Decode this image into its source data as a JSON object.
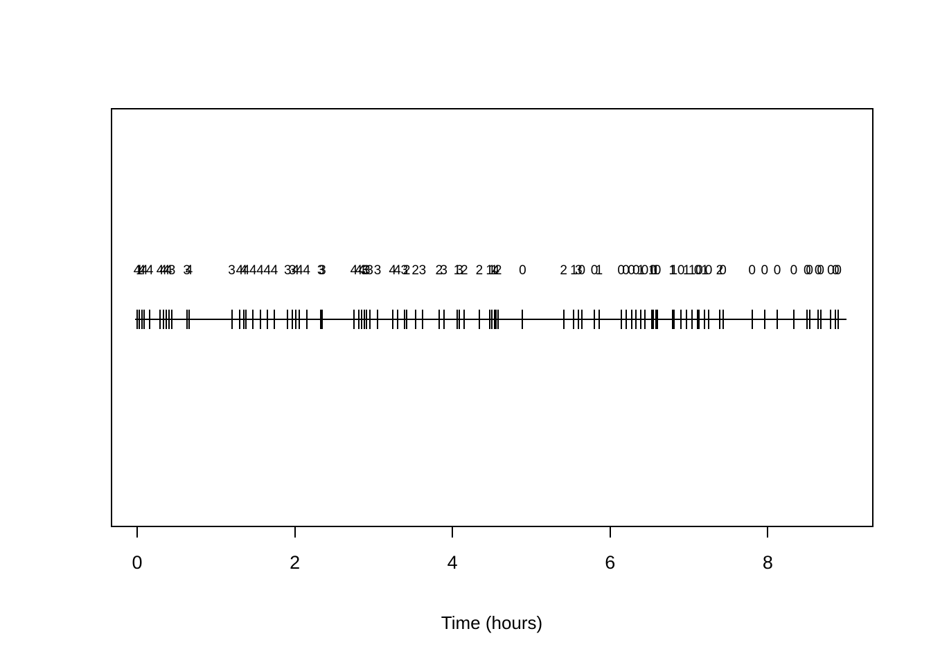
{
  "chart_data": {
    "type": "scatter",
    "subtype": "event-rug-timeline",
    "title": "",
    "xlabel": "Time (hours)",
    "ylabel": "",
    "xlim": [
      0,
      9
    ],
    "x_ticks": [
      0,
      2,
      4,
      6,
      8
    ],
    "grid": false,
    "legend": "none",
    "marker": "vertical-tick-on-horizontal-line",
    "annotation_meaning": "count label printed above each event tick",
    "events": [
      {
        "t": 0.0,
        "label": "4"
      },
      {
        "t": 0.03,
        "label": "1"
      },
      {
        "t": 0.06,
        "label": "4"
      },
      {
        "t": 0.09,
        "label": "4"
      },
      {
        "t": 0.16,
        "label": "4"
      },
      {
        "t": 0.29,
        "label": "4"
      },
      {
        "t": 0.33,
        "label": "4"
      },
      {
        "t": 0.37,
        "label": "4"
      },
      {
        "t": 0.4,
        "label": "4"
      },
      {
        "t": 0.44,
        "label": "3"
      },
      {
        "t": 0.63,
        "label": "3"
      },
      {
        "t": 0.66,
        "label": "4"
      },
      {
        "t": 1.2,
        "label": "3"
      },
      {
        "t": 1.3,
        "label": "4"
      },
      {
        "t": 1.35,
        "label": "4"
      },
      {
        "t": 1.38,
        "label": "4"
      },
      {
        "t": 1.47,
        "label": "4"
      },
      {
        "t": 1.56,
        "label": "4"
      },
      {
        "t": 1.65,
        "label": "4"
      },
      {
        "t": 1.74,
        "label": "4"
      },
      {
        "t": 1.91,
        "label": "3"
      },
      {
        "t": 1.97,
        "label": "3"
      },
      {
        "t": 2.01,
        "label": "4"
      },
      {
        "t": 2.06,
        "label": "4"
      },
      {
        "t": 2.15,
        "label": "4"
      },
      {
        "t": 2.33,
        "label": "3"
      },
      {
        "t": 2.35,
        "label": "3"
      },
      {
        "t": 2.75,
        "label": "4"
      },
      {
        "t": 2.81,
        "label": "4"
      },
      {
        "t": 2.85,
        "label": "4"
      },
      {
        "t": 2.88,
        "label": "3"
      },
      {
        "t": 2.91,
        "label": "3"
      },
      {
        "t": 2.95,
        "label": "3"
      },
      {
        "t": 3.05,
        "label": "3"
      },
      {
        "t": 3.24,
        "label": "4"
      },
      {
        "t": 3.3,
        "label": "4"
      },
      {
        "t": 3.39,
        "label": "3"
      },
      {
        "t": 3.42,
        "label": "2"
      },
      {
        "t": 3.53,
        "label": "2"
      },
      {
        "t": 3.62,
        "label": "3"
      },
      {
        "t": 3.83,
        "label": "2"
      },
      {
        "t": 3.89,
        "label": "3"
      },
      {
        "t": 4.06,
        "label": "1"
      },
      {
        "t": 4.09,
        "label": "3"
      },
      {
        "t": 4.15,
        "label": "2"
      },
      {
        "t": 4.34,
        "label": "2"
      },
      {
        "t": 4.47,
        "label": "1"
      },
      {
        "t": 4.5,
        "label": "1"
      },
      {
        "t": 4.53,
        "label": "1"
      },
      {
        "t": 4.55,
        "label": "4"
      },
      {
        "t": 4.58,
        "label": "2"
      },
      {
        "t": 4.89,
        "label": "0"
      },
      {
        "t": 5.41,
        "label": "2"
      },
      {
        "t": 5.54,
        "label": "1"
      },
      {
        "t": 5.6,
        "label": "3"
      },
      {
        "t": 5.64,
        "label": "0"
      },
      {
        "t": 5.8,
        "label": "0"
      },
      {
        "t": 5.86,
        "label": "1"
      },
      {
        "t": 6.14,
        "label": "0"
      },
      {
        "t": 6.2,
        "label": "0"
      },
      {
        "t": 6.27,
        "label": "0"
      },
      {
        "t": 6.33,
        "label": "0"
      },
      {
        "t": 6.39,
        "label": "1"
      },
      {
        "t": 6.44,
        "label": "0"
      },
      {
        "t": 6.53,
        "label": "1"
      },
      {
        "t": 6.55,
        "label": "0"
      },
      {
        "t": 6.58,
        "label": "1"
      },
      {
        "t": 6.6,
        "label": "0"
      },
      {
        "t": 6.79,
        "label": "1"
      },
      {
        "t": 6.81,
        "label": "1"
      },
      {
        "t": 6.9,
        "label": "0"
      },
      {
        "t": 6.97,
        "label": "1"
      },
      {
        "t": 7.04,
        "label": "1"
      },
      {
        "t": 7.11,
        "label": "0"
      },
      {
        "t": 7.13,
        "label": "0"
      },
      {
        "t": 7.2,
        "label": "1"
      },
      {
        "t": 7.25,
        "label": "0"
      },
      {
        "t": 7.39,
        "label": "2"
      },
      {
        "t": 7.43,
        "label": "0"
      },
      {
        "t": 7.8,
        "label": "0"
      },
      {
        "t": 7.96,
        "label": "0"
      },
      {
        "t": 8.12,
        "label": "0"
      },
      {
        "t": 8.33,
        "label": "0"
      },
      {
        "t": 8.5,
        "label": "0"
      },
      {
        "t": 8.53,
        "label": "0"
      },
      {
        "t": 8.64,
        "label": "0"
      },
      {
        "t": 8.67,
        "label": "0"
      },
      {
        "t": 8.8,
        "label": "0"
      },
      {
        "t": 8.86,
        "label": "0"
      },
      {
        "t": 8.89,
        "label": "0"
      }
    ],
    "timeline_span_hours": [
      -0.03,
      9.0
    ],
    "colors": {
      "foreground": "#000000",
      "background": "#ffffff"
    }
  }
}
